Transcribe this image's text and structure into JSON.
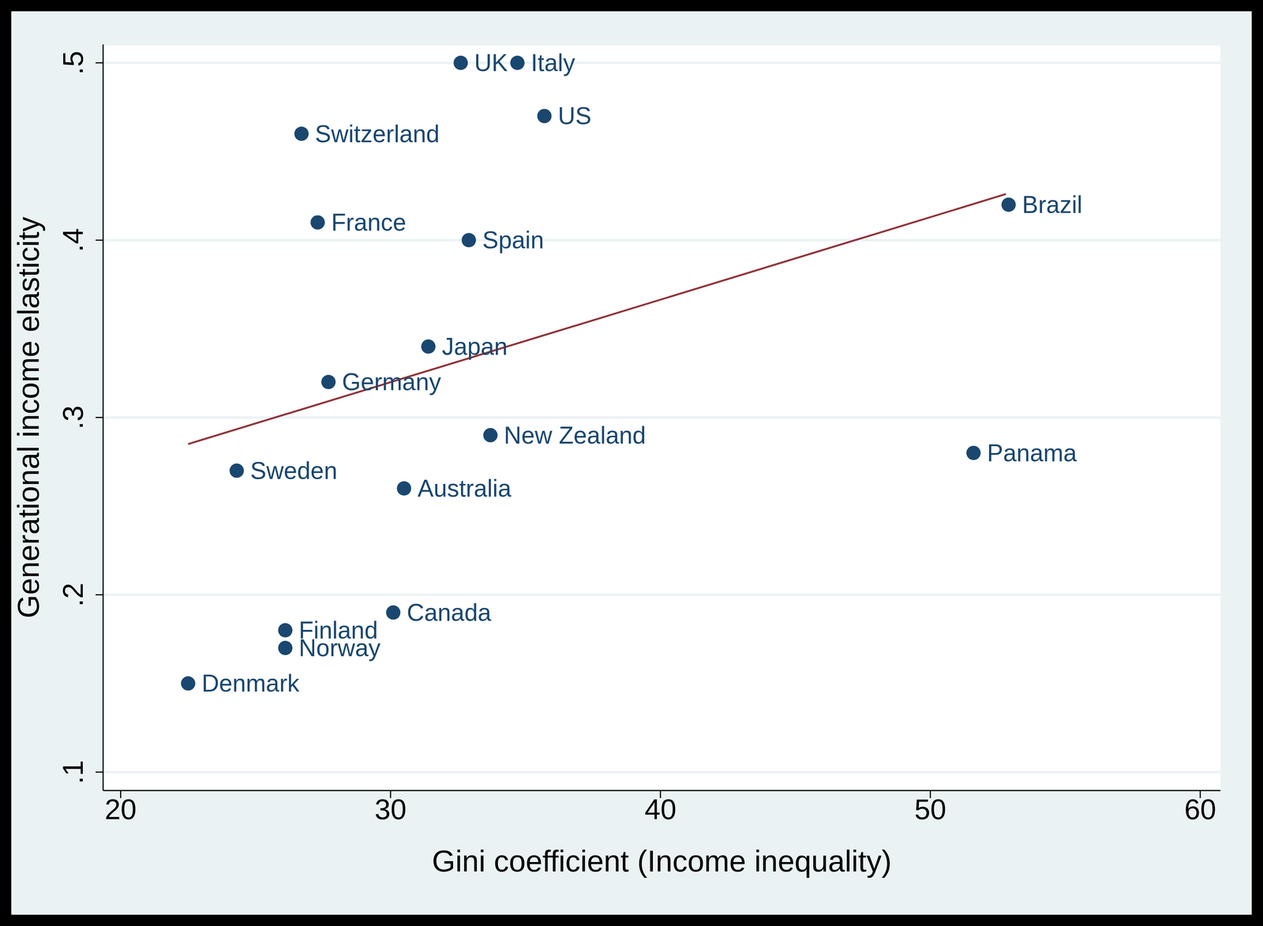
{
  "chart_data": {
    "type": "scatter",
    "x_label": "Gini coefficient (Income inequality)",
    "y_label": "Generational income elasticity",
    "xlim": [
      19.35,
      60.75
    ],
    "ylim": [
      0.0896,
      0.5104
    ],
    "xticks": [
      20,
      30,
      40,
      50,
      60
    ],
    "yticks": [
      {
        "value": 0.1,
        "label": ".1"
      },
      {
        "value": 0.2,
        "label": ".2"
      },
      {
        "value": 0.3,
        "label": ".3"
      },
      {
        "value": 0.4,
        "label": ".4"
      },
      {
        "value": 0.5,
        "label": ".5"
      }
    ],
    "grid": true,
    "series": [
      {
        "type": "scatter",
        "color": "#1a476f",
        "marker": "circle",
        "labels": [
          "UK",
          "Italy",
          "US",
          "Switzerland",
          "France",
          "Spain",
          "Brazil",
          "Japan",
          "Germany",
          "New Zealand",
          "Panama",
          "Sweden",
          "Australia",
          "Canada",
          "Finland",
          "Norway",
          "Denmark"
        ],
        "x": [
          32.6,
          34.7,
          35.7,
          26.7,
          27.3,
          32.9,
          52.9,
          31.4,
          27.7,
          33.7,
          51.6,
          24.3,
          30.5,
          30.1,
          26.1,
          26.1,
          22.5
        ],
        "values": [
          0.5,
          0.5,
          0.47,
          0.46,
          0.41,
          0.4,
          0.42,
          0.34,
          0.32,
          0.29,
          0.28,
          0.27,
          0.26,
          0.19,
          0.18,
          0.17,
          0.15
        ]
      },
      {
        "type": "line",
        "color": "#90353b",
        "line_style": "solid",
        "x": [
          22.5,
          52.8
        ],
        "values": [
          0.285,
          0.426
        ]
      }
    ]
  }
}
